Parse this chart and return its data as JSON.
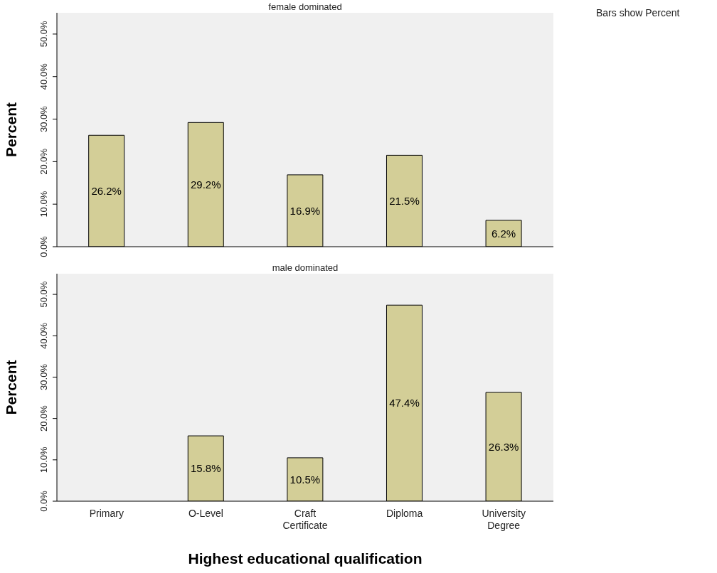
{
  "chart_data": [
    {
      "type": "bar",
      "title": "female dominated",
      "ylabel": "Percent",
      "annotations": [
        "Bars show Percent"
      ],
      "categories": [
        null,
        null,
        null,
        null,
        null
      ],
      "color": "#d3ce97",
      "values": [
        26.2,
        29.2,
        16.9,
        21.5,
        6.2
      ],
      "value_labels": [
        "26.2%",
        "29.2%",
        "16.9%",
        "21.5%",
        "6.2%"
      ],
      "ylim": [
        0,
        55
      ],
      "yticks": [
        {
          "value": 0,
          "label": "0.0%"
        },
        {
          "value": 10,
          "label": "10.0%"
        },
        {
          "value": 20,
          "label": "20.0%"
        },
        {
          "value": 30,
          "label": "30.0%"
        },
        {
          "value": 40,
          "label": "40.0%"
        },
        {
          "value": 50,
          "label": "50.0%"
        }
      ]
    },
    {
      "type": "bar",
      "title": "male dominated",
      "ylabel": "Percent",
      "xlabel": "Highest educational qualification",
      "categories": [
        "Primary",
        "O-Level",
        "Craft Certificate",
        "Diploma",
        "University Degree"
      ],
      "color": "#d3ce97",
      "values": [
        0,
        15.8,
        10.5,
        47.4,
        26.3
      ],
      "value_labels": [
        null,
        "15.8%",
        "10.5%",
        "47.4%",
        "26.3%"
      ],
      "ylim": [
        0,
        55
      ],
      "yticks": [
        {
          "value": 0,
          "label": "0.0%"
        },
        {
          "value": 10,
          "label": "10.0%"
        },
        {
          "value": 20,
          "label": "20.0%"
        },
        {
          "value": 30,
          "label": "30.0%"
        },
        {
          "value": 40,
          "label": "40.0%"
        },
        {
          "value": 50,
          "label": "50.0%"
        }
      ]
    }
  ]
}
